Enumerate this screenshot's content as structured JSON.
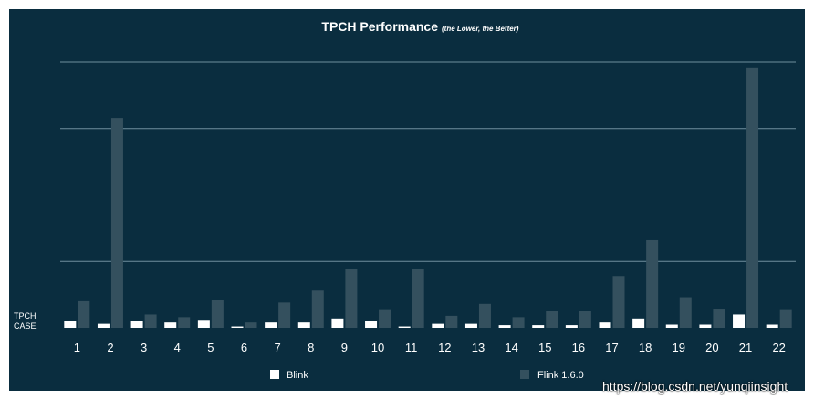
{
  "colors": {
    "background": "#0a2d3f",
    "grid": "#6f8e9e",
    "blink": "#ffffff",
    "flink": "#34505e",
    "text": "#ffffff"
  },
  "chart_data": {
    "type": "bar",
    "title": "TPCH Performance",
    "subtitle": "(the Lower, the Better)",
    "xlabel": "TPCH CASE",
    "ylabel": "",
    "grid": true,
    "legend_position": "bottom",
    "ylim": [
      0,
      100
    ],
    "categories": [
      "1",
      "2",
      "3",
      "4",
      "5",
      "6",
      "7",
      "8",
      "9",
      "10",
      "11",
      "12",
      "13",
      "14",
      "15",
      "16",
      "17",
      "18",
      "19",
      "20",
      "21",
      "22"
    ],
    "series": [
      {
        "name": "Blink",
        "color": "#ffffff",
        "values": [
          2.5,
          1.5,
          2.5,
          2,
          3,
          0.5,
          2,
          2,
          3.5,
          2.5,
          0.5,
          1.5,
          1.5,
          1,
          1,
          1,
          2,
          3.5,
          1.2,
          1.2,
          5,
          1.2
        ]
      },
      {
        "name": "Flink 1.6.0",
        "color": "#34505e",
        "values": [
          10,
          79,
          5,
          4,
          10.5,
          2,
          9.5,
          14,
          22,
          7,
          22,
          4.5,
          9,
          4,
          6.5,
          6.5,
          19.5,
          33,
          11.5,
          7.2,
          98,
          7
        ]
      }
    ]
  },
  "watermark": "https://blog.csdn.net/yunqiinsight"
}
